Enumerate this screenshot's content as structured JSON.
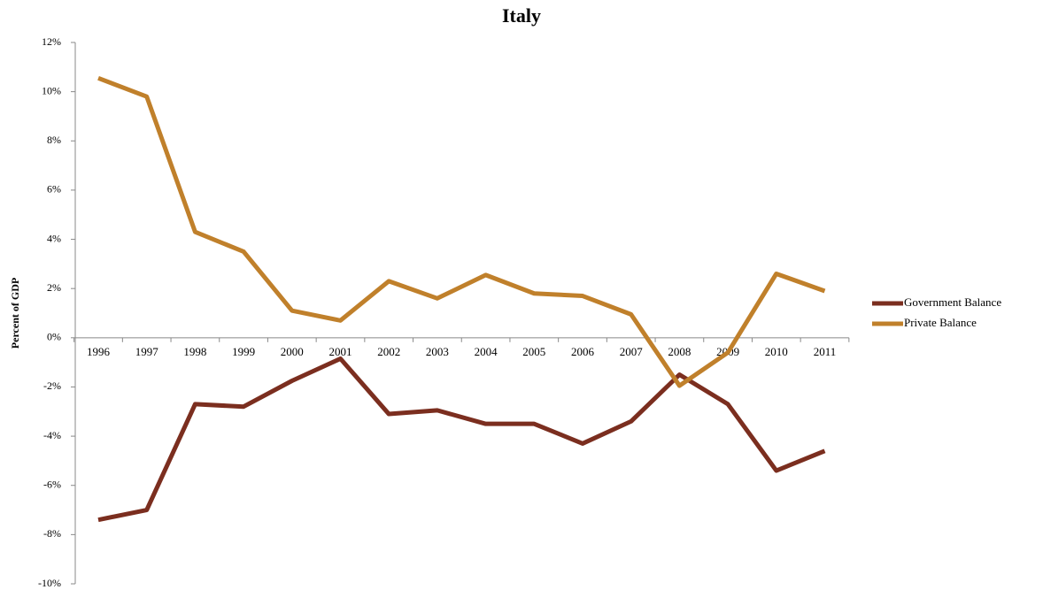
{
  "chart_data": {
    "type": "line",
    "title": "Italy",
    "y_label": "Percent of GDP",
    "categories": [
      "1996",
      "1997",
      "1998",
      "1999",
      "2000",
      "2001",
      "2002",
      "2003",
      "2004",
      "2005",
      "2006",
      "2007",
      "2008",
      "2009",
      "2010",
      "2011"
    ],
    "series": [
      {
        "name": "Government Balance",
        "color": "#7b2e1f",
        "values": [
          -7.4,
          -7.0,
          -2.7,
          -2.8,
          -1.75,
          -0.85,
          -3.1,
          -2.95,
          -3.5,
          -3.5,
          -4.3,
          -3.4,
          -1.5,
          -2.7,
          -5.4,
          -4.6
        ]
      },
      {
        "name": "Private Balance",
        "color": "#c0802b",
        "values": [
          10.55,
          9.8,
          4.3,
          3.5,
          1.1,
          0.7,
          2.3,
          1.6,
          2.55,
          1.8,
          1.7,
          0.95,
          -1.95,
          -0.6,
          2.6,
          1.9
        ]
      }
    ],
    "ylim": [
      -10,
      12
    ],
    "yticks": [
      {
        "value": -10,
        "label": "-10%"
      },
      {
        "value": -8,
        "label": "-8%"
      },
      {
        "value": -6,
        "label": "-6%"
      },
      {
        "value": -4,
        "label": "-4%"
      },
      {
        "value": -2,
        "label": "-2%"
      },
      {
        "value": 0,
        "label": "0%"
      },
      {
        "value": 2,
        "label": "2%"
      },
      {
        "value": 4,
        "label": "4%"
      },
      {
        "value": 6,
        "label": "6%"
      },
      {
        "value": 8,
        "label": "8%"
      },
      {
        "value": 10,
        "label": "10%"
      },
      {
        "value": 12,
        "label": "12%"
      }
    ],
    "grid": false,
    "legend": "right"
  }
}
